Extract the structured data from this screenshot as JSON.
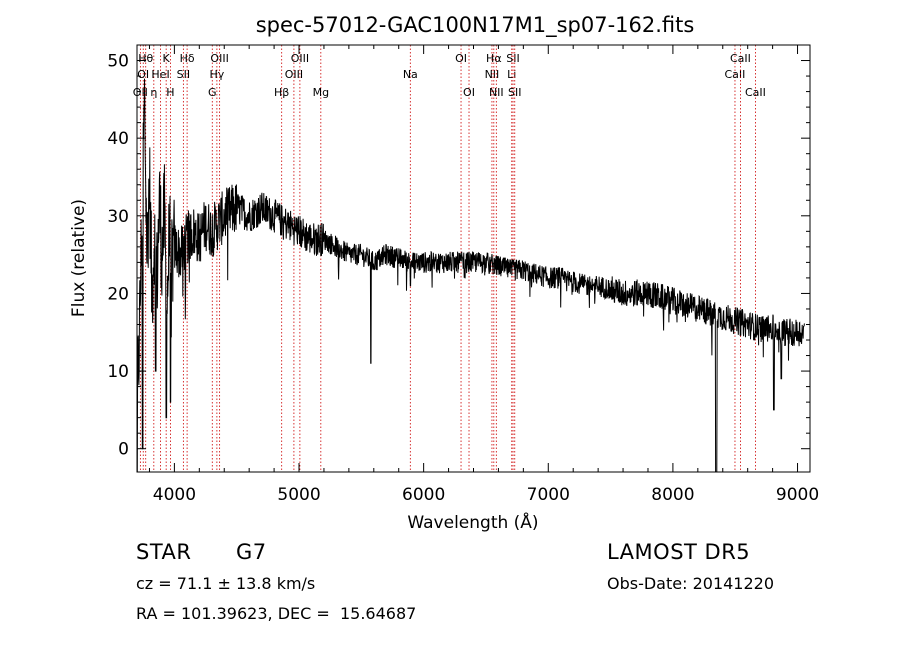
{
  "chart_data": {
    "type": "line",
    "title": "spec-57012-GAC100N17M1_sp07-162.fits",
    "xlabel": "Wavelength (Å)",
    "ylabel": "Flux (relative)",
    "xlim": [
      3700,
      9100
    ],
    "ylim": [
      -3,
      52
    ],
    "xticks": [
      4000,
      5000,
      6000,
      7000,
      8000,
      9000
    ],
    "yticks": [
      0,
      10,
      20,
      30,
      40,
      50
    ],
    "grid": false,
    "series": [
      {
        "color": "#000000",
        "x": [
          3700,
          3720,
          3740,
          3760,
          3780,
          3800,
          3820,
          3840,
          3860,
          3880,
          3900,
          3920,
          3940,
          3960,
          3980,
          4000,
          4050,
          4100,
          4150,
          4200,
          4250,
          4300,
          4350,
          4400,
          4500,
          4600,
          4700,
          4800,
          4900,
          5000,
          5100,
          5200,
          5300,
          5400,
          5500,
          5600,
          5700,
          5800,
          5900,
          6000,
          6100,
          6200,
          6300,
          6400,
          6500,
          6600,
          6700,
          6800,
          6900,
          7000,
          7100,
          7200,
          7300,
          7400,
          7500,
          7600,
          7700,
          7800,
          7900,
          8000,
          8100,
          8200,
          8300,
          8400,
          8500,
          8600,
          8700,
          8800,
          8900,
          9000,
          9050
        ],
        "y": [
          5,
          15,
          30,
          45,
          25,
          35,
          20,
          28,
          22,
          32,
          25,
          30,
          18,
          28,
          24,
          26,
          25,
          27,
          28,
          27,
          29,
          28,
          29,
          30,
          31,
          30,
          31,
          30,
          29,
          28,
          27,
          27,
          26,
          25,
          25,
          24,
          25,
          24.5,
          24,
          24,
          24,
          24,
          24,
          24,
          24,
          23.5,
          23,
          23,
          22.5,
          22,
          22,
          21.5,
          21,
          21,
          20.5,
          20,
          20,
          20,
          19.5,
          19,
          18.5,
          18,
          17.5,
          17,
          16.5,
          16,
          15.5,
          15.5,
          15,
          15,
          15
        ]
      }
    ],
    "dips": [
      {
        "x": 3745,
        "y": 0
      },
      {
        "x": 3935,
        "y": 4
      },
      {
        "x": 3968,
        "y": 6
      },
      {
        "x": 3850,
        "y": 10
      },
      {
        "x": 5577,
        "y": 11
      },
      {
        "x": 5893,
        "y": 21
      },
      {
        "x": 8345,
        "y": -3
      },
      {
        "x": 8350,
        "y": -3
      },
      {
        "x": 8870,
        "y": 9
      },
      {
        "x": 8810,
        "y": 5
      }
    ],
    "lines": [
      {
        "x": 3727,
        "label": "OII",
        "row": 3
      },
      {
        "x": 3750,
        "label": "OI",
        "row": 2
      },
      {
        "x": 3770,
        "label": "Hθ",
        "row": 1
      },
      {
        "x": 3835,
        "label": "η",
        "row": 3
      },
      {
        "x": 3889,
        "label": "HeI",
        "row": 2
      },
      {
        "x": 3934,
        "label": "K",
        "row": 1
      },
      {
        "x": 3968,
        "label": "H",
        "row": 3
      },
      {
        "x": 4072,
        "label": "SII",
        "row": 2
      },
      {
        "x": 4102,
        "label": "Hδ",
        "row": 1
      },
      {
        "x": 4304,
        "label": "G",
        "row": 3
      },
      {
        "x": 4341,
        "label": "Hγ",
        "row": 2
      },
      {
        "x": 4363,
        "label": "OIII",
        "row": 1
      },
      {
        "x": 4861,
        "label": "Hβ",
        "row": 3
      },
      {
        "x": 4959,
        "label": "OIII",
        "row": 2
      },
      {
        "x": 5007,
        "label": "OIII",
        "row": 1
      },
      {
        "x": 5175,
        "label": "Mg",
        "row": 3
      },
      {
        "x": 5893,
        "label": "Na",
        "row": 2
      },
      {
        "x": 6300,
        "label": "OI",
        "row": 1
      },
      {
        "x": 6364,
        "label": "OI",
        "row": 3
      },
      {
        "x": 6548,
        "label": "NII",
        "row": 2
      },
      {
        "x": 6563,
        "label": "Hα",
        "row": 1
      },
      {
        "x": 6583,
        "label": "NII",
        "row": 3
      },
      {
        "x": 6707,
        "label": "Li",
        "row": 2
      },
      {
        "x": 6717,
        "label": "SII",
        "row": 1
      },
      {
        "x": 6731,
        "label": "SII",
        "row": 3
      },
      {
        "x": 8498,
        "label": "CaII",
        "row": 2
      },
      {
        "x": 8542,
        "label": "CaII",
        "row": 1
      },
      {
        "x": 8662,
        "label": "CaII",
        "row": 3
      }
    ]
  },
  "info": {
    "class": "STAR",
    "subclass": "G7",
    "survey": "LAMOST DR5",
    "cz": "cz = 71.1 ± 13.8 km/s",
    "obs_date": "Obs-Date: 20141220",
    "radec": "RA = 101.39623, DEC =  15.64687"
  }
}
